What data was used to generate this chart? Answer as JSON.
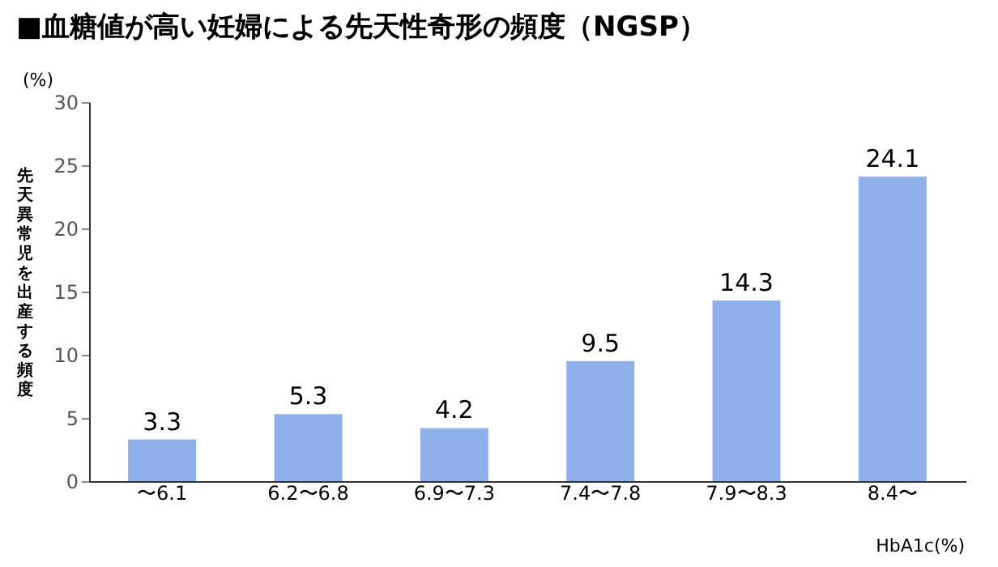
{
  "chart_data": {
    "type": "bar",
    "title": "■血糖値が高い妊婦による先天性奇形の頻度（NGSP）",
    "categories": [
      "〜6.1",
      "6.2〜6.8",
      "6.9〜7.3",
      "7.4〜7.8",
      "7.9〜8.3",
      "8.4〜"
    ],
    "values": [
      3.3,
      5.3,
      4.2,
      9.5,
      14.3,
      24.1
    ],
    "color": "#8fb0ea",
    "xlabel": "HbA1c(%)",
    "ylabel": "先天異常児を出産する頻度",
    "annotations": [
      "(%)"
    ],
    "ylim": [
      0,
      30
    ],
    "yticks": [
      0,
      5,
      10,
      15,
      20,
      25,
      30
    ],
    "grid": false,
    "data_labels": true
  }
}
